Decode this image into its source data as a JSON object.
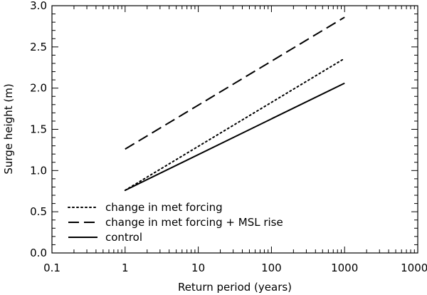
{
  "chart_data": {
    "type": "line",
    "xscale": "log",
    "xlabel": "Return period (years)",
    "ylabel": "Surge height (m)",
    "xlim": [
      0.1,
      10000
    ],
    "ylim": [
      0.0,
      3.0
    ],
    "xticks": [
      "0.1",
      "1",
      "10",
      "100",
      "1000",
      "10000"
    ],
    "yticks": [
      "0.0",
      "0.5",
      "1.0",
      "1.5",
      "2.0",
      "2.5",
      "3.0"
    ],
    "grid": false,
    "legend_position": "bottom-left",
    "series": [
      {
        "name": "change in met forcing",
        "style": "dotted",
        "x": [
          1,
          1000
        ],
        "y": [
          0.76,
          2.36
        ]
      },
      {
        "name": "change in met forcing + MSL rise",
        "style": "dashed",
        "x": [
          1,
          1000
        ],
        "y": [
          1.26,
          2.86
        ]
      },
      {
        "name": "control",
        "style": "solid",
        "x": [
          1,
          1000
        ],
        "y": [
          0.76,
          2.06
        ]
      }
    ]
  }
}
